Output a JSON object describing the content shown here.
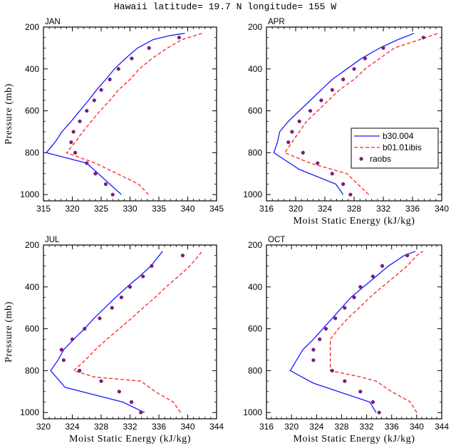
{
  "title": "Hawaii  latitude= 19.7 N longitude= 155 W",
  "colors": {
    "model": "#1a1aff",
    "ibis": "#ff2020",
    "raobs": "#7a1e7a",
    "frame": "#000000"
  },
  "chart_data": [
    {
      "type": "line",
      "panel_label": "JAN",
      "xlabel": "",
      "ylabel": "Pressure (mb)",
      "xlim": [
        315,
        345
      ],
      "xticks": [
        315,
        320,
        325,
        330,
        335,
        340,
        345
      ],
      "ylim": [
        200,
        1030
      ],
      "yticks": [
        200,
        400,
        600,
        800,
        1000
      ],
      "series": [
        {
          "name": "b30.004",
          "style": "solid",
          "points": [
            [
              328.5,
              1000
            ],
            [
              326.5,
              950
            ],
            [
              322.5,
              850
            ],
            [
              315.5,
              800
            ],
            [
              317.0,
              750
            ],
            [
              318.2,
              700
            ],
            [
              319.8,
              650
            ],
            [
              321.3,
              600
            ],
            [
              322.8,
              550
            ],
            [
              324.2,
              500
            ],
            [
              325.8,
              450
            ],
            [
              327.3,
              400
            ],
            [
              329.2,
              350
            ],
            [
              331.3,
              300
            ],
            [
              334.0,
              260
            ],
            [
              337.0,
              240
            ],
            [
              339.5,
              230
            ]
          ]
        },
        {
          "name": "b01.01ibis",
          "style": "dashed",
          "points": [
            [
              333.2,
              1000
            ],
            [
              331.5,
              950
            ],
            [
              324.0,
              850
            ],
            [
              319.0,
              800
            ],
            [
              320.5,
              750
            ],
            [
              321.8,
              700
            ],
            [
              323.3,
              650
            ],
            [
              324.8,
              600
            ],
            [
              326.5,
              550
            ],
            [
              328.0,
              500
            ],
            [
              330.0,
              450
            ],
            [
              331.6,
              400
            ],
            [
              333.8,
              350
            ],
            [
              336.5,
              300
            ],
            [
              339.0,
              260
            ],
            [
              342.5,
              230
            ]
          ]
        },
        {
          "name": "raobs",
          "style": "dots",
          "points": [
            [
              327.0,
              1000
            ],
            [
              325.8,
              950
            ],
            [
              324.0,
              900
            ],
            [
              322.5,
              850
            ],
            [
              320.5,
              800
            ],
            [
              319.8,
              750
            ],
            [
              320.2,
              700
            ],
            [
              321.3,
              650
            ],
            [
              322.5,
              600
            ],
            [
              323.8,
              550
            ],
            [
              325.0,
              500
            ],
            [
              326.5,
              450
            ],
            [
              328.0,
              400
            ],
            [
              330.3,
              350
            ],
            [
              333.3,
              300
            ],
            [
              338.5,
              250
            ]
          ]
        }
      ],
      "legend": null
    },
    {
      "type": "line",
      "panel_label": "APR",
      "xlabel": "Moist Static Energy (kJ/kg)",
      "ylabel": "",
      "xlim": [
        316,
        340
      ],
      "xticks": [
        316,
        320,
        324,
        328,
        332,
        336,
        340
      ],
      "ylim": [
        200,
        1030
      ],
      "yticks": [
        200,
        400,
        600,
        800,
        1000
      ],
      "series": [
        {
          "name": "b30.004",
          "style": "solid",
          "points": [
            [
              326.5,
              1000
            ],
            [
              325.5,
              950
            ],
            [
              320.5,
              880
            ],
            [
              317.0,
              800
            ],
            [
              317.5,
              750
            ],
            [
              317.8,
              700
            ],
            [
              319.0,
              650
            ],
            [
              320.5,
              600
            ],
            [
              322.0,
              550
            ],
            [
              323.5,
              500
            ],
            [
              325.0,
              450
            ],
            [
              327.0,
              400
            ],
            [
              329.0,
              350
            ],
            [
              331.5,
              300
            ],
            [
              334.0,
              260
            ],
            [
              336.2,
              230
            ]
          ]
        },
        {
          "name": "b01.01ibis",
          "style": "dashed",
          "points": [
            [
              330.0,
              1000
            ],
            [
              328.5,
              950
            ],
            [
              327.0,
              900
            ],
            [
              322.0,
              850
            ],
            [
              318.5,
              800
            ],
            [
              319.5,
              750
            ],
            [
              320.5,
              700
            ],
            [
              321.5,
              650
            ],
            [
              323.0,
              600
            ],
            [
              324.5,
              550
            ],
            [
              326.0,
              500
            ],
            [
              328.0,
              450
            ],
            [
              329.5,
              400
            ],
            [
              331.5,
              350
            ],
            [
              333.5,
              300
            ],
            [
              337.0,
              260
            ],
            [
              339.5,
              230
            ]
          ]
        },
        {
          "name": "raobs",
          "style": "dots",
          "points": [
            [
              327.5,
              1000
            ],
            [
              326.5,
              950
            ],
            [
              325.0,
              900
            ],
            [
              323.0,
              850
            ],
            [
              321.0,
              800
            ],
            [
              319.0,
              750
            ],
            [
              319.5,
              700
            ],
            [
              320.5,
              650
            ],
            [
              322.0,
              600
            ],
            [
              323.5,
              550
            ],
            [
              325.0,
              500
            ],
            [
              326.5,
              450
            ],
            [
              328.0,
              400
            ],
            [
              329.5,
              350
            ],
            [
              332.0,
              300
            ],
            [
              337.5,
              250
            ]
          ]
        }
      ],
      "legend": {
        "placement": "center-right",
        "entries": [
          {
            "label": "b30.004",
            "style": "solid"
          },
          {
            "label": "b01.01ibis",
            "style": "dashed"
          },
          {
            "label": "raobs",
            "style": "dots"
          }
        ]
      }
    },
    {
      "type": "line",
      "panel_label": "JUL",
      "xlabel": "Moist Static Energy (kJ/kg)",
      "ylabel": "Pressure (mb)",
      "xlim": [
        320,
        344
      ],
      "xticks": [
        320,
        324,
        328,
        332,
        336,
        340,
        344
      ],
      "ylim": [
        200,
        1030
      ],
      "yticks": [
        200,
        400,
        600,
        800,
        1000
      ],
      "series": [
        {
          "name": "b30.004",
          "style": "solid",
          "points": [
            [
              334.0,
              1000
            ],
            [
              331.0,
              950
            ],
            [
              323.0,
              880
            ],
            [
              321.0,
              800
            ],
            [
              322.0,
              750
            ],
            [
              322.8,
              700
            ],
            [
              324.2,
              650
            ],
            [
              325.7,
              600
            ],
            [
              327.0,
              550
            ],
            [
              328.5,
              500
            ],
            [
              330.0,
              450
            ],
            [
              331.6,
              400
            ],
            [
              333.3,
              350
            ],
            [
              334.9,
              300
            ],
            [
              336.5,
              230
            ]
          ]
        },
        {
          "name": "b01.01ibis",
          "style": "dashed",
          "points": [
            [
              339.0,
              1000
            ],
            [
              338.0,
              950
            ],
            [
              335.5,
              900
            ],
            [
              333.5,
              850
            ],
            [
              327.0,
              830
            ],
            [
              324.2,
              800
            ],
            [
              325.8,
              750
            ],
            [
              327.2,
              700
            ],
            [
              328.8,
              650
            ],
            [
              330.5,
              600
            ],
            [
              332.2,
              550
            ],
            [
              333.8,
              500
            ],
            [
              335.5,
              450
            ],
            [
              337.0,
              400
            ],
            [
              338.7,
              350
            ],
            [
              340.3,
              300
            ],
            [
              342.0,
              230
            ]
          ]
        },
        {
          "name": "raobs",
          "style": "dots",
          "points": [
            [
              333.5,
              1000
            ],
            [
              332.2,
              950
            ],
            [
              330.5,
              900
            ],
            [
              328.0,
              850
            ],
            [
              325.0,
              800
            ],
            [
              322.8,
              750
            ],
            [
              322.5,
              700
            ],
            [
              324.0,
              650
            ],
            [
              325.7,
              600
            ],
            [
              327.8,
              550
            ],
            [
              329.5,
              500
            ],
            [
              330.8,
              450
            ],
            [
              332.0,
              400
            ],
            [
              333.8,
              350
            ],
            [
              335.0,
              300
            ],
            [
              339.3,
              250
            ]
          ]
        }
      ],
      "legend": null
    },
    {
      "type": "line",
      "panel_label": "OCT",
      "xlabel": "Moist Static Energy (kJ/kg)",
      "ylabel": "",
      "xlim": [
        316,
        344
      ],
      "xticks": [
        316,
        320,
        324,
        328,
        332,
        336,
        340,
        344
      ],
      "ylim": [
        200,
        1030
      ],
      "yticks": [
        200,
        400,
        600,
        800,
        1000
      ],
      "series": [
        {
          "name": "b30.004",
          "style": "solid",
          "points": [
            [
              333.5,
              1000
            ],
            [
              332.5,
              950
            ],
            [
              323.5,
              860
            ],
            [
              319.8,
              800
            ],
            [
              320.8,
              750
            ],
            [
              321.8,
              700
            ],
            [
              323.5,
              650
            ],
            [
              325.0,
              600
            ],
            [
              326.5,
              550
            ],
            [
              328.0,
              500
            ],
            [
              329.5,
              450
            ],
            [
              331.5,
              400
            ],
            [
              333.5,
              350
            ],
            [
              335.5,
              300
            ],
            [
              338.0,
              250
            ],
            [
              339.8,
              230
            ]
          ]
        },
        {
          "name": "b01.01ibis",
          "style": "dashed",
          "points": [
            [
              340.0,
              1000
            ],
            [
              339.0,
              950
            ],
            [
              336.0,
              900
            ],
            [
              333.5,
              850
            ],
            [
              331.0,
              830
            ],
            [
              326.2,
              800
            ],
            [
              326.2,
              700
            ],
            [
              326.2,
              650
            ],
            [
              327.5,
              600
            ],
            [
              329.0,
              550
            ],
            [
              330.8,
              500
            ],
            [
              332.5,
              450
            ],
            [
              334.5,
              400
            ],
            [
              336.5,
              350
            ],
            [
              338.5,
              300
            ],
            [
              340.0,
              250
            ],
            [
              341.0,
              230
            ]
          ]
        },
        {
          "name": "raobs",
          "style": "dots",
          "points": [
            [
              334.0,
              1000
            ],
            [
              333.0,
              950
            ],
            [
              331.0,
              900
            ],
            [
              328.5,
              850
            ],
            [
              326.5,
              800
            ],
            [
              323.5,
              750
            ],
            [
              323.5,
              700
            ],
            [
              324.5,
              650
            ],
            [
              325.5,
              600
            ],
            [
              327.0,
              550
            ],
            [
              328.5,
              500
            ],
            [
              330.0,
              450
            ],
            [
              331.0,
              400
            ],
            [
              333.0,
              350
            ],
            [
              334.5,
              300
            ],
            [
              338.5,
              250
            ]
          ]
        }
      ],
      "legend": null
    }
  ]
}
